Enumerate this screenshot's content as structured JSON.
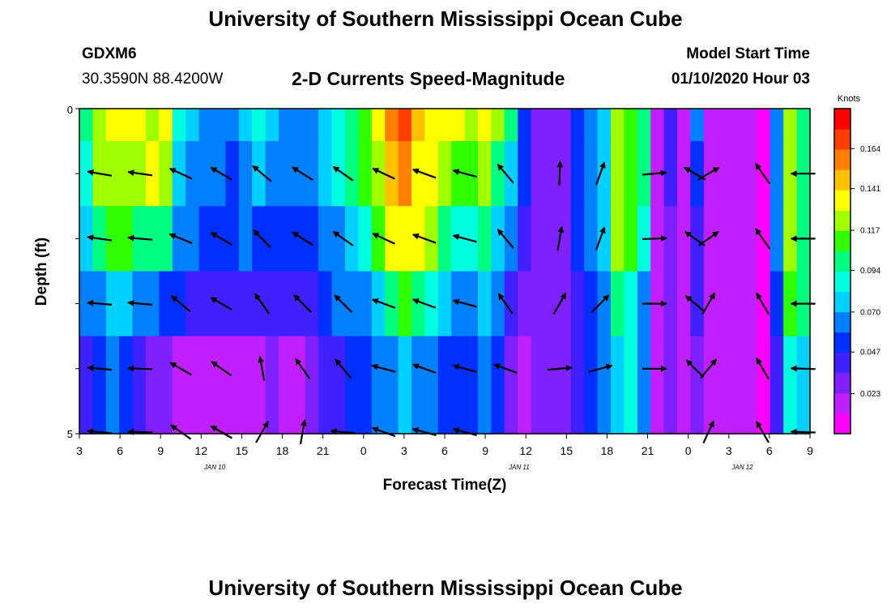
{
  "header": {
    "title": "University of Southern Mississippi Ocean Cube",
    "station": "GDXM6",
    "coords": "30.3590N 88.4200W",
    "subtitle": "2-D Currents Speed-Magnitude",
    "model_label": "Model Start Time",
    "model_time": "01/10/2020 Hour 03",
    "footer_title": "University of Southern Mississippi Ocean Cube"
  },
  "colors": {
    "palette": [
      "#ff00ff",
      "#c020ff",
      "#8020ff",
      "#4020ff",
      "#0030ff",
      "#0080ff",
      "#00d0ff",
      "#00ffe0",
      "#00ff80",
      "#30ff00",
      "#a0ff00",
      "#ffff00",
      "#ffc000",
      "#ff8000",
      "#ff4000",
      "#ff0000"
    ]
  },
  "chart_data": {
    "type": "heatmap",
    "title": "2-D Currents Speed-Magnitude",
    "xlabel": "Forecast Time(Z)",
    "ylabel": "Depth (ft)",
    "x_tick_labels": [
      "3",
      "6",
      "9",
      "12",
      "15",
      "18",
      "21",
      "0",
      "3",
      "6",
      "9",
      "12",
      "15",
      "18",
      "21",
      "0",
      "3",
      "6",
      "9"
    ],
    "day_labels": [
      {
        "label": "JAN 10",
        "hour_index": 10
      },
      {
        "label": "JAN 11",
        "hour_index": 32.5
      },
      {
        "label": "JAN 12",
        "hour_index": 49
      }
    ],
    "x_range_hours": [
      0,
      54
    ],
    "y_range_ft": [
      0,
      5
    ],
    "y_tick_labels": [
      "0",
      "5"
    ],
    "colorbar": {
      "unit": "Knots",
      "range": [
        0,
        0.187
      ],
      "tick_labels": [
        "0.164",
        "0.141",
        "0.117",
        "0.094",
        "0.070",
        "0.047",
        "0.023"
      ],
      "tick_values": [
        0.164,
        0.141,
        0.117,
        0.094,
        0.07,
        0.047,
        0.023
      ]
    },
    "speed_rows": [
      [
        0.1,
        0.12,
        0.13,
        0.13,
        0.13,
        0.12,
        0.13,
        0.09,
        0.08,
        0.07,
        0.07,
        0.07,
        0.08,
        0.09,
        0.08,
        0.07,
        0.07,
        0.07,
        0.08,
        0.09,
        0.1,
        0.11,
        0.13,
        0.16,
        0.17,
        0.15,
        0.14,
        0.13,
        0.13,
        0.12,
        0.13,
        0.12,
        0.1,
        0.05,
        0.03,
        0.03,
        0.03,
        0.05,
        0.06,
        0.08,
        0.12,
        0.11,
        0.1,
        0.02,
        0.04,
        0.02,
        0.06,
        0.02,
        0.02,
        0.02,
        0.02,
        0.01,
        0.07,
        0.12,
        0.1
      ],
      [
        0.09,
        0.12,
        0.12,
        0.12,
        0.12,
        0.13,
        0.12,
        0.08,
        0.07,
        0.06,
        0.07,
        0.05,
        0.07,
        0.08,
        0.07,
        0.07,
        0.06,
        0.06,
        0.08,
        0.09,
        0.1,
        0.11,
        0.12,
        0.15,
        0.16,
        0.14,
        0.13,
        0.12,
        0.11,
        0.11,
        0.12,
        0.1,
        0.08,
        0.05,
        0.03,
        0.03,
        0.03,
        0.05,
        0.06,
        0.08,
        0.12,
        0.11,
        0.1,
        0.02,
        0.04,
        0.02,
        0.05,
        0.02,
        0.02,
        0.02,
        0.02,
        0.01,
        0.07,
        0.12,
        0.1
      ],
      [
        0.08,
        0.1,
        0.11,
        0.11,
        0.1,
        0.1,
        0.1,
        0.07,
        0.06,
        0.05,
        0.05,
        0.05,
        0.06,
        0.05,
        0.05,
        0.05,
        0.05,
        0.05,
        0.06,
        0.07,
        0.08,
        0.09,
        0.11,
        0.13,
        0.14,
        0.13,
        0.12,
        0.1,
        0.09,
        0.09,
        0.1,
        0.08,
        0.06,
        0.04,
        0.03,
        0.03,
        0.03,
        0.05,
        0.06,
        0.08,
        0.12,
        0.11,
        0.09,
        0.02,
        0.03,
        0.02,
        0.04,
        0.02,
        0.02,
        0.02,
        0.02,
        0.01,
        0.06,
        0.12,
        0.1
      ],
      [
        0.06,
        0.07,
        0.08,
        0.08,
        0.07,
        0.06,
        0.05,
        0.05,
        0.04,
        0.04,
        0.04,
        0.04,
        0.04,
        0.04,
        0.04,
        0.04,
        0.04,
        0.04,
        0.05,
        0.06,
        0.06,
        0.07,
        0.08,
        0.1,
        0.11,
        0.1,
        0.09,
        0.08,
        0.07,
        0.07,
        0.08,
        0.06,
        0.04,
        0.03,
        0.03,
        0.03,
        0.03,
        0.04,
        0.05,
        0.07,
        0.1,
        0.09,
        0.07,
        0.02,
        0.03,
        0.02,
        0.04,
        0.02,
        0.02,
        0.02,
        0.02,
        0.01,
        0.05,
        0.11,
        0.1
      ],
      [
        0.04,
        0.05,
        0.06,
        0.05,
        0.04,
        0.03,
        0.03,
        0.02,
        0.02,
        0.02,
        0.02,
        0.02,
        0.02,
        0.02,
        0.03,
        0.02,
        0.02,
        0.03,
        0.04,
        0.04,
        0.05,
        0.05,
        0.06,
        0.07,
        0.08,
        0.07,
        0.06,
        0.05,
        0.05,
        0.05,
        0.06,
        0.05,
        0.03,
        0.02,
        0.03,
        0.03,
        0.03,
        0.04,
        0.05,
        0.06,
        0.08,
        0.09,
        0.06,
        0.02,
        0.03,
        0.02,
        0.03,
        0.02,
        0.02,
        0.02,
        0.02,
        0.01,
        0.04,
        0.09,
        0.08
      ]
    ],
    "vectors": [
      {
        "depth_ft": 1,
        "points": [
          {
            "hour": 1.5,
            "angle": 170
          },
          {
            "hour": 4.5,
            "angle": 172
          },
          {
            "hour": 7.5,
            "angle": 155
          },
          {
            "hour": 10.5,
            "angle": 150
          },
          {
            "hour": 13.5,
            "angle": 140
          },
          {
            "hour": 16.5,
            "angle": 148
          },
          {
            "hour": 19.5,
            "angle": 145
          },
          {
            "hour": 22.5,
            "angle": 155
          },
          {
            "hour": 25.5,
            "angle": 160
          },
          {
            "hour": 28.5,
            "angle": 165
          },
          {
            "hour": 31.5,
            "angle": 130
          },
          {
            "hour": 35.5,
            "angle": 88
          },
          {
            "hour": 38.5,
            "angle": 70
          },
          {
            "hour": 42.5,
            "angle": 5
          },
          {
            "hour": 45.5,
            "angle": 150
          },
          {
            "hour": 46.5,
            "angle": 30
          },
          {
            "hour": 50.5,
            "angle": 125
          },
          {
            "hour": 53.5,
            "angle": 180
          }
        ]
      },
      {
        "depth_ft": 2,
        "points": [
          {
            "hour": 1.5,
            "angle": 172
          },
          {
            "hour": 4.5,
            "angle": 175
          },
          {
            "hour": 7.5,
            "angle": 158
          },
          {
            "hour": 10.5,
            "angle": 150
          },
          {
            "hour": 13.5,
            "angle": 135
          },
          {
            "hour": 16.5,
            "angle": 148
          },
          {
            "hour": 19.5,
            "angle": 145
          },
          {
            "hour": 22.5,
            "angle": 155
          },
          {
            "hour": 25.5,
            "angle": 160
          },
          {
            "hour": 28.5,
            "angle": 165
          },
          {
            "hour": 31.5,
            "angle": 130
          },
          {
            "hour": 35.5,
            "angle": 80
          },
          {
            "hour": 38.5,
            "angle": 70
          },
          {
            "hour": 42.5,
            "angle": 2
          },
          {
            "hour": 45.5,
            "angle": 145
          },
          {
            "hour": 46.5,
            "angle": 35
          },
          {
            "hour": 50.5,
            "angle": 125
          },
          {
            "hour": 53.5,
            "angle": 180
          }
        ]
      },
      {
        "depth_ft": 3,
        "points": [
          {
            "hour": 1.5,
            "angle": 175
          },
          {
            "hour": 4.5,
            "angle": 175
          },
          {
            "hour": 7.5,
            "angle": 140
          },
          {
            "hour": 10.5,
            "angle": 150
          },
          {
            "hour": 13.5,
            "angle": 125
          },
          {
            "hour": 16.5,
            "angle": 135
          },
          {
            "hour": 19.5,
            "angle": 135
          },
          {
            "hour": 22.5,
            "angle": 160
          },
          {
            "hour": 25.5,
            "angle": 160
          },
          {
            "hour": 28.5,
            "angle": 165
          },
          {
            "hour": 31.5,
            "angle": 125
          },
          {
            "hour": 35.5,
            "angle": 60
          },
          {
            "hour": 38.5,
            "angle": 45
          },
          {
            "hour": 42.5,
            "angle": 0
          },
          {
            "hour": 45.5,
            "angle": 140
          },
          {
            "hour": 46.5,
            "angle": 60
          },
          {
            "hour": 50.5,
            "angle": 120
          },
          {
            "hour": 53.5,
            "angle": 180
          }
        ]
      },
      {
        "depth_ft": 4,
        "points": [
          {
            "hour": 1.5,
            "angle": 175
          },
          {
            "hour": 4.5,
            "angle": 178
          },
          {
            "hour": 7.5,
            "angle": 150
          },
          {
            "hour": 10.5,
            "angle": 145
          },
          {
            "hour": 13.5,
            "angle": 100
          },
          {
            "hour": 16.5,
            "angle": 125
          },
          {
            "hour": 19.5,
            "angle": 130
          },
          {
            "hour": 22.5,
            "angle": 165
          },
          {
            "hour": 25.5,
            "angle": 160
          },
          {
            "hour": 28.5,
            "angle": 165
          },
          {
            "hour": 31.5,
            "angle": 160
          },
          {
            "hour": 35.5,
            "angle": 5
          },
          {
            "hour": 38.5,
            "angle": 15
          },
          {
            "hour": 42.5,
            "angle": 0
          },
          {
            "hour": 45.5,
            "angle": 135
          },
          {
            "hour": 46.5,
            "angle": 50
          },
          {
            "hour": 50.5,
            "angle": 120
          },
          {
            "hour": 53.5,
            "angle": 178
          }
        ]
      },
      {
        "depth_ft": 5,
        "points": [
          {
            "hour": 1.5,
            "angle": 175
          },
          {
            "hour": 4.5,
            "angle": 178
          },
          {
            "hour": 7.5,
            "angle": 145
          },
          {
            "hour": 10.5,
            "angle": 150
          },
          {
            "hour": 13.5,
            "angle": 60
          },
          {
            "hour": 16.5,
            "angle": 80
          },
          {
            "hour": 19.5,
            "angle": 175
          },
          {
            "hour": 22.5,
            "angle": 160
          },
          {
            "hour": 25.5,
            "angle": 165
          },
          {
            "hour": 28.5,
            "angle": 165
          },
          {
            "hour": 46.5,
            "angle": 65
          },
          {
            "hour": 50.5,
            "angle": 120
          },
          {
            "hour": 53.5,
            "angle": 178
          }
        ]
      }
    ]
  }
}
